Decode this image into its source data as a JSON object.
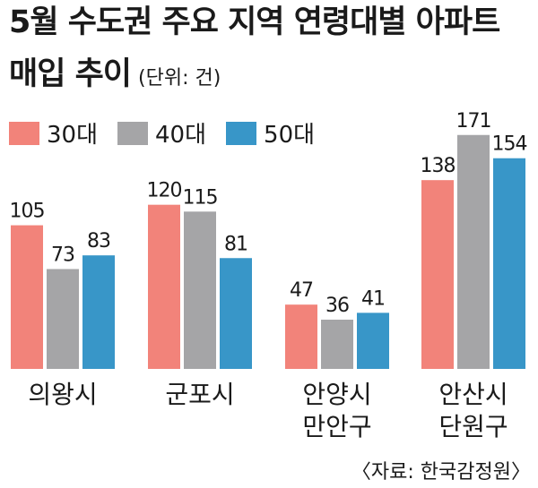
{
  "chart_data": {
    "type": "bar",
    "title_line1": "5월 수도권 주요 지역 연령대별 아파트",
    "title_line2": "매입 추이",
    "unit": "(단위: 건)",
    "source": "〈자료: 한국감정원〉",
    "categories": [
      [
        "의왕시"
      ],
      [
        "군포시"
      ],
      [
        "안양시",
        "만안구"
      ],
      [
        "안산시",
        "단원구"
      ]
    ],
    "series": [
      {
        "name": "30대",
        "color": "#f2837a",
        "values": [
          105,
          120,
          47,
          138
        ]
      },
      {
        "name": "40대",
        "color": "#a5a5a7",
        "values": [
          73,
          115,
          36,
          171
        ]
      },
      {
        "name": "50대",
        "color": "#3896c8",
        "values": [
          83,
          81,
          41,
          154
        ]
      }
    ],
    "ylim": [
      0,
      180
    ],
    "grid": false,
    "legend_position": "top-left"
  }
}
